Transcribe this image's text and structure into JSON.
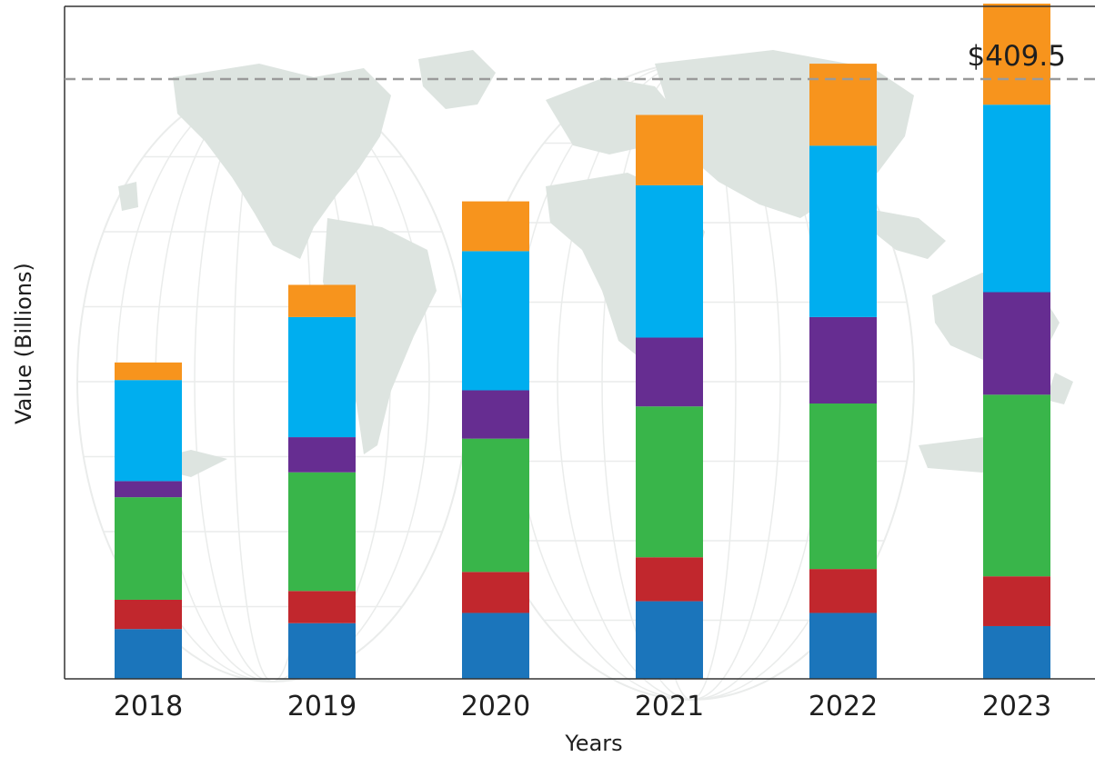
{
  "chart_data": {
    "type": "bar",
    "stacked": true,
    "categories": [
      "2018",
      "2019",
      "2020",
      "2021",
      "2022",
      "2023"
    ],
    "xlabel": "Years",
    "ylabel": "Value (Billions)",
    "ylim": [
      0,
      460
    ],
    "y_ticks_shown": false,
    "grid": false,
    "legend": "none",
    "background": "world map",
    "series": [
      {
        "color": "#1b75bb",
        "values": [
          34,
          38,
          45,
          53,
          45,
          36
        ]
      },
      {
        "color": "#c1272d",
        "values": [
          20,
          22,
          28,
          30,
          30,
          34
        ]
      },
      {
        "color": "#39b54a",
        "values": [
          70,
          81,
          91,
          103,
          113,
          124
        ]
      },
      {
        "color": "#662d91",
        "values": [
          11,
          24,
          33,
          47,
          59,
          70
        ]
      },
      {
        "color": "#00aeef",
        "values": [
          69,
          82,
          95,
          104,
          117,
          128
        ]
      },
      {
        "color": "#f7941d",
        "values": [
          12,
          22,
          34,
          48,
          56,
          69
        ]
      }
    ],
    "reference_line": {
      "value": 409.5,
      "label": "$409.5",
      "style": "dashed"
    }
  }
}
